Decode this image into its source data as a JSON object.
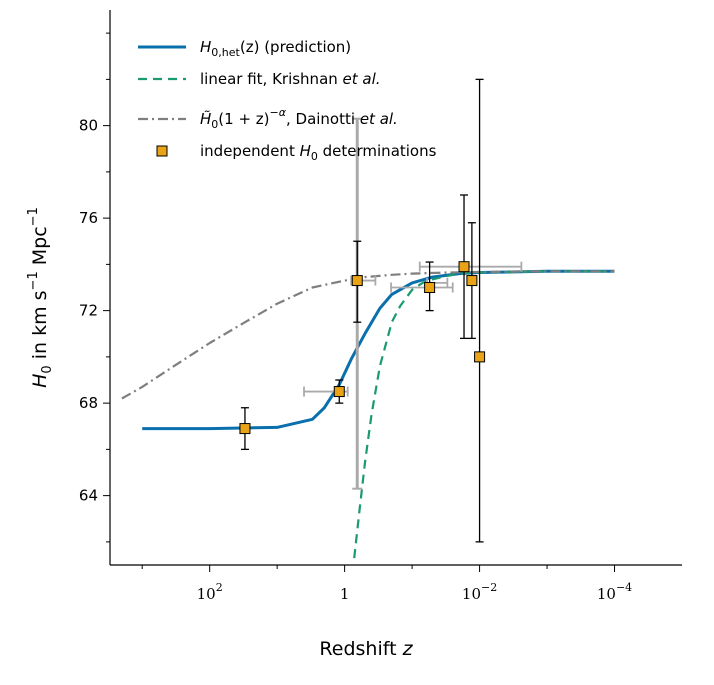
{
  "chart_data": {
    "type": "line",
    "xlabel": "Redshift z",
    "xlabel_main": "Redshift ",
    "xlabel_var": "z",
    "ylabel_parts": {
      "var": "H",
      "var_sub": "0",
      "mid": " in km s",
      "exp1": "−1",
      "unit2": " Mpc",
      "exp2": "−1"
    },
    "x_scale": "log (reversed, redshift decreasing to the right)",
    "xlim": [
      3000,
      1e-05
    ],
    "ylim": [
      61,
      85
    ],
    "y_ticks": [
      64,
      68,
      72,
      76,
      80
    ],
    "x_ticks": [
      {
        "value": 100,
        "base": "10",
        "exp": "2"
      },
      {
        "value": 1,
        "base": "1",
        "exp": ""
      },
      {
        "value": 0.01,
        "base": "10",
        "exp": "−2"
      },
      {
        "value": 0.0001,
        "base": "10",
        "exp": "−4"
      }
    ],
    "legend": {
      "position": "top-left",
      "entries": [
        {
          "series": "prediction",
          "text_main": "H",
          "text_sub": "0,het",
          "text_rest": "(z) (prediction)"
        },
        {
          "series": "krishnan",
          "text_main": "linear fit, Krishnan ",
          "text_italic": "et al.",
          "text_rest": ""
        },
        {
          "series": "dainotti",
          "text_main": "H̃",
          "text_sub": "0",
          "text_rest": "(1 + z)",
          "text_sup": "−α",
          "text_after": ", Dainotti ",
          "text_italic": "et al."
        },
        {
          "series": "points",
          "text_main": "independent ",
          "text_var": "H",
          "text_sub": "0",
          "text_rest": " determinations"
        }
      ]
    },
    "series": [
      {
        "name": "H0,het(z) (prediction)",
        "color": "#0a6fad",
        "style": "solid",
        "x": [
          1000,
          100,
          10,
          3,
          2,
          1.2,
          0.8,
          0.5,
          0.3,
          0.2,
          0.1,
          0.05,
          0.02,
          0.01,
          0.001,
          0.0001
        ],
        "y": [
          66.9,
          66.9,
          66.95,
          67.3,
          67.8,
          68.8,
          69.9,
          71.0,
          72.1,
          72.7,
          73.2,
          73.45,
          73.6,
          73.65,
          73.7,
          73.7
        ]
      },
      {
        "name": "linear fit, Krishnan et al.",
        "color": "#1a9a6e",
        "style": "dashed",
        "x": [
          0.72,
          0.6,
          0.5,
          0.4,
          0.3,
          0.2,
          0.15,
          0.1,
          0.07,
          0.05,
          0.03,
          0.02,
          0.01,
          0.001,
          0.0001
        ],
        "y": [
          61.3,
          63.4,
          65.4,
          67.5,
          69.6,
          71.5,
          72.2,
          72.9,
          73.2,
          73.35,
          73.5,
          73.6,
          73.65,
          73.7,
          73.7
        ]
      },
      {
        "name": "Dainotti et al.",
        "color": "#7f7f7f",
        "style": "dashdot",
        "x": [
          2000,
          1000,
          300,
          100,
          30,
          10,
          3,
          1,
          0.5,
          0.2,
          0.1,
          0.03,
          0.01,
          0.001,
          0.0001
        ],
        "y": [
          68.2,
          68.7,
          69.7,
          70.6,
          71.5,
          72.3,
          73.0,
          73.3,
          73.45,
          73.55,
          73.6,
          73.65,
          73.67,
          73.7,
          73.7
        ]
      }
    ],
    "points": {
      "name": "independent H0 determinations",
      "color": "#e8a317",
      "data": [
        {
          "x": 30,
          "y": 66.9,
          "yerr": [
            0.9,
            0.9
          ]
        },
        {
          "x": 1.2,
          "y": 68.5,
          "yerr": [
            0.5,
            0.5
          ],
          "xerr": [
            2.8,
            0.3
          ]
        },
        {
          "x": 0.65,
          "y": 73.3,
          "yerr": [
            1.8,
            1.7
          ]
        },
        {
          "x": 0.055,
          "y": 73.0,
          "yerr": [
            1.0,
            1.1
          ],
          "xerr": [
            0.15,
            0.03
          ]
        },
        {
          "x": 0.017,
          "y": 73.9,
          "yerr": [
            3.1,
            3.1
          ]
        },
        {
          "x": 0.013,
          "y": 73.3,
          "yerr": [
            2.5,
            2.5
          ]
        },
        {
          "x": 0.01,
          "y": 70.0,
          "yerr": [
            8.0,
            12.0
          ]
        }
      ]
    },
    "gray_errorbars": {
      "color": "#aaaaaa",
      "data": [
        {
          "x": 0.65,
          "y": 73.3,
          "yerr": [
            9.0,
            7.0
          ]
        },
        {
          "x": 0.04,
          "y": 73.2,
          "xerr": [
            0.02,
            0.01
          ]
        },
        {
          "x": 0.017,
          "y": 73.9,
          "xerr": [
            0.06,
            0.0146
          ]
        },
        {
          "x": 0.65,
          "y": 73.3,
          "xerr": [
            0.15,
            0.3
          ]
        }
      ]
    }
  }
}
